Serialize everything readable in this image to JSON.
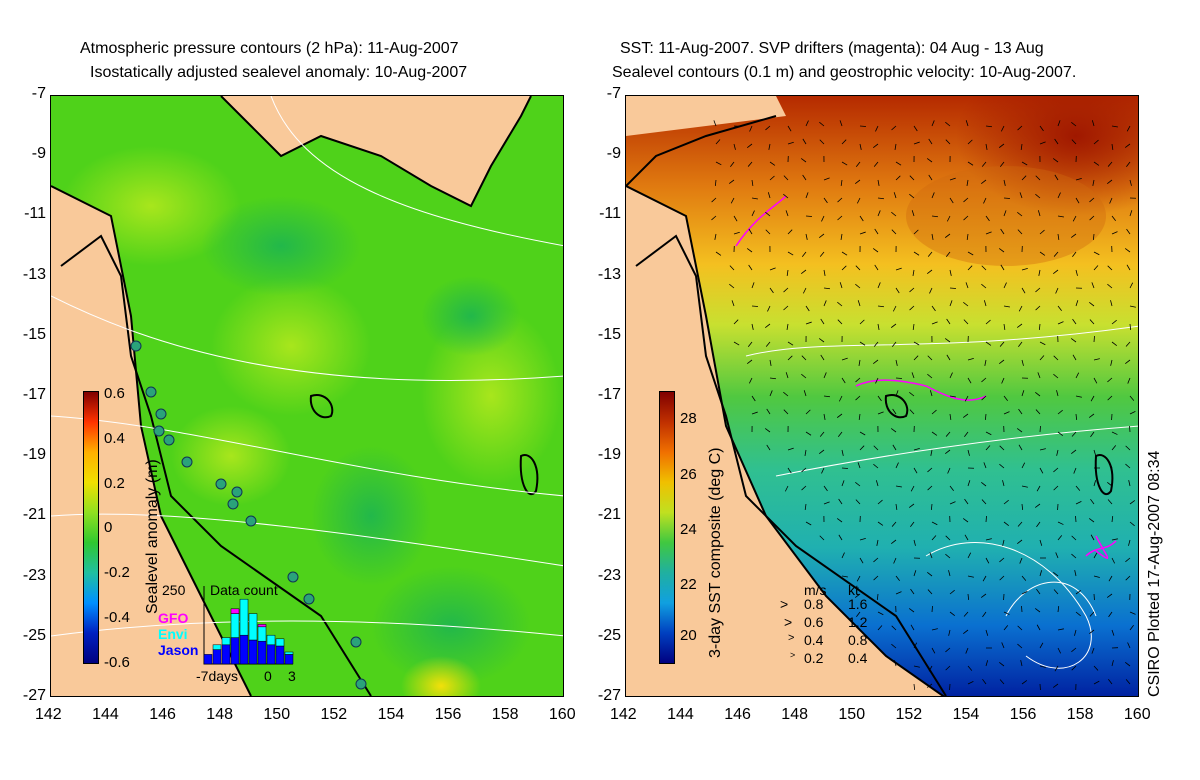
{
  "left_panel": {
    "title_line1": "Atmospheric pressure contours (2 hPa): 11-Aug-2007",
    "title_line2": "Isostatically adjusted sealevel anomaly: 10-Aug-2007",
    "colorbar_label": "Sealevel anomaly (m)",
    "colorbar_ticks": [
      "0.6",
      "0.4",
      "0.2",
      "0",
      "-0.2",
      "-0.4",
      "-0.6"
    ],
    "histogram": {
      "title": "Data count",
      "ymax_label": "250",
      "x_labels": [
        "-7days",
        "0",
        "3"
      ],
      "series": [
        {
          "name": "GFO",
          "color": "#ff00ff"
        },
        {
          "name": "Envi",
          "color": "#00ffff"
        },
        {
          "name": "Jason",
          "color": "#0000ff"
        }
      ],
      "jason_values": [
        40,
        60,
        80,
        110,
        120,
        100,
        95,
        80,
        75,
        40
      ],
      "envi_values": [
        0,
        20,
        30,
        100,
        150,
        110,
        60,
        40,
        30,
        10
      ],
      "gfo_values": [
        0,
        0,
        0,
        20,
        0,
        0,
        10,
        0,
        0,
        0
      ]
    }
  },
  "right_panel": {
    "title_line1": "SST: 11-Aug-2007. SVP drifters (magenta): 04 Aug - 13 Aug",
    "title_line2": "Sealevel contours (0.1 m) and geostrophic velocity: 10-Aug-2007.",
    "colorbar_label": "3-day SST composite (deg C)",
    "colorbar_ticks": [
      "28",
      "26",
      "24",
      "22",
      "20"
    ],
    "velocity_legend": {
      "header_ms": "m/s",
      "header_kt": "kt",
      "rows": [
        {
          "ms": "0.8",
          "kt": "1.6"
        },
        {
          "ms": "0.6",
          "kt": "1.2"
        },
        {
          "ms": "0.4",
          "kt": "0.8"
        },
        {
          "ms": "0.2",
          "kt": "0.4"
        }
      ]
    }
  },
  "axes": {
    "y_ticks": [
      "-7",
      "-9",
      "-11",
      "-13",
      "-15",
      "-17",
      "-19",
      "-21",
      "-23",
      "-25",
      "-27"
    ],
    "x_ticks": [
      "142",
      "144",
      "146",
      "148",
      "150",
      "152",
      "154",
      "156",
      "158",
      "160"
    ]
  },
  "credit": "CSIRO Plotted 17-Aug-2007 08:34",
  "colors": {
    "land": "#f9c99a",
    "sla_base": "#4fd21a",
    "sst_warm": "#d06a10"
  }
}
